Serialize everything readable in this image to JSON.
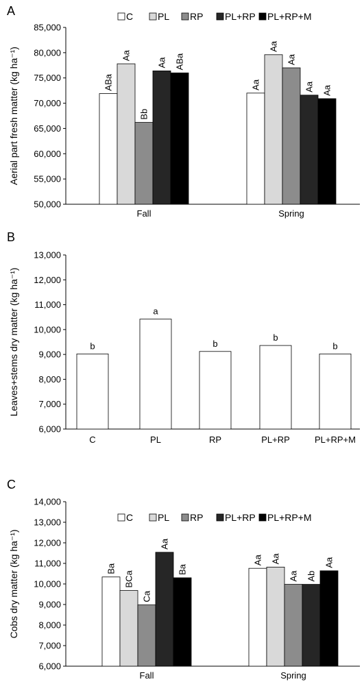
{
  "chart_data": [
    {
      "type": "bar",
      "panel": "A",
      "ylabel": "Aerial part fresh matter (kg ha⁻¹)",
      "ylim": [
        50000,
        85000
      ],
      "yticks": [
        "50,000",
        "55,000",
        "60,000",
        "65,000",
        "70,000",
        "75,000",
        "80,000",
        "85,000"
      ],
      "categories": [
        "Fall",
        "Spring"
      ],
      "legend": true,
      "series": [
        {
          "name": "C",
          "color": "#ffffff",
          "values": [
            71900,
            72000
          ],
          "labels": [
            "ABa",
            "Aa"
          ]
        },
        {
          "name": "PL",
          "color": "#d9d9d9",
          "values": [
            77800,
            79600
          ],
          "labels": [
            "Aa",
            "Aa"
          ]
        },
        {
          "name": "RP",
          "color": "#8c8c8c",
          "values": [
            66200,
            77000
          ],
          "labels": [
            "Bb",
            "Aa"
          ]
        },
        {
          "name": "PL+RP",
          "color": "#262626",
          "values": [
            76400,
            71600
          ],
          "labels": [
            "Aa",
            "Aa"
          ]
        },
        {
          "name": "PL+RP+M",
          "color": "#000000",
          "values": [
            76000,
            70900
          ],
          "labels": [
            "ABa",
            "Aa"
          ]
        }
      ]
    },
    {
      "type": "bar",
      "panel": "B",
      "ylabel": "Leaves+stems dry matter (kg ha⁻¹)",
      "ylim": [
        6000,
        13000
      ],
      "yticks": [
        "6,000",
        "7,000",
        "8,000",
        "9,000",
        "10,000",
        "11,000",
        "12,000",
        "13,000"
      ],
      "categories": [
        "C",
        "PL",
        "RP",
        "PL+RP",
        "PL+RP+M"
      ],
      "legend": false,
      "values": [
        9020,
        10420,
        9120,
        9360,
        9020
      ],
      "labels": [
        "b",
        "a",
        "b",
        "b",
        "b"
      ]
    },
    {
      "type": "bar",
      "panel": "C",
      "ylabel": "Cobs dry matter (kg ha⁻¹)",
      "ylim": [
        6000,
        14000
      ],
      "yticks": [
        "6,000",
        "7,000",
        "8,000",
        "9,000",
        "10,000",
        "11,000",
        "12,000",
        "13,000",
        "14,000"
      ],
      "categories": [
        "Fall",
        "Spring"
      ],
      "legend": true,
      "series": [
        {
          "name": "C",
          "color": "#ffffff",
          "values": [
            10340,
            10760
          ],
          "labels": [
            "Ba",
            "Aa"
          ]
        },
        {
          "name": "PL",
          "color": "#d9d9d9",
          "values": [
            9680,
            10820
          ],
          "labels": [
            "BCa",
            "Aa"
          ]
        },
        {
          "name": "RP",
          "color": "#8c8c8c",
          "values": [
            8980,
            9980
          ],
          "labels": [
            "Ca",
            "Aa"
          ]
        },
        {
          "name": "PL+RP",
          "color": "#262626",
          "values": [
            11540,
            9980
          ],
          "labels": [
            "Aa",
            "Ab"
          ]
        },
        {
          "name": "PL+RP+M",
          "color": "#000000",
          "values": [
            10300,
            10640
          ],
          "labels": [
            "Ba",
            "Aa"
          ]
        }
      ]
    }
  ]
}
